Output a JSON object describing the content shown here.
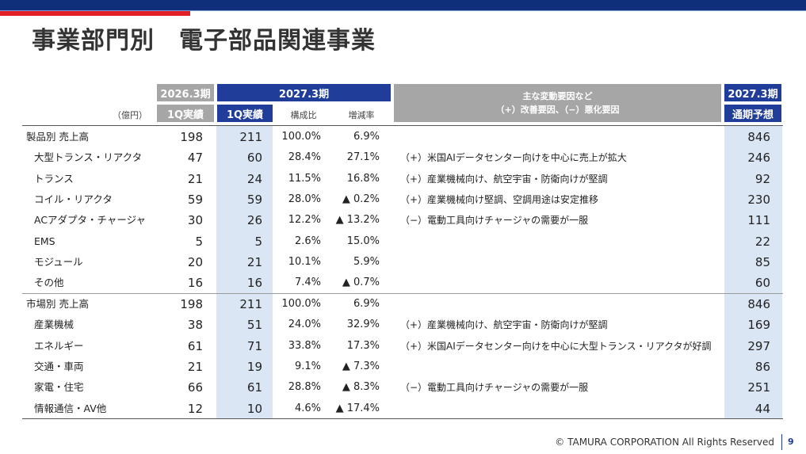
{
  "title": "事業部門別　電子部品関連事業",
  "headers": {
    "prev_period": "2026.3期",
    "prev_result": "1Q実績",
    "cur_period": "2027.3期",
    "cur_result": "1Q実績",
    "composition": "構成比",
    "change": "増減率",
    "factors_line1": "主な変動要因など",
    "factors_line2": "（+）改善要因、（−）悪化要因",
    "forecast_period": "2027.3期",
    "forecast": "通期予想",
    "unit": "（億円）"
  },
  "product_rows": [
    {
      "label": "製品別 売上高",
      "prev": "198",
      "cur": "211",
      "ratio": "100.0%",
      "change": "6.9%",
      "note": "",
      "forecast": "846"
    },
    {
      "label": "大型トランス・リアクタ",
      "prev": "47",
      "cur": "60",
      "ratio": "28.4%",
      "change": "27.1%",
      "note": "（+）米国AIデータセンター向けを中心に売上が拡大",
      "forecast": "246"
    },
    {
      "label": "トランス",
      "prev": "21",
      "cur": "24",
      "ratio": "11.5%",
      "change": "16.8%",
      "note": "（+）産業機械向け、航空宇宙・防衛向けが堅調",
      "forecast": "92"
    },
    {
      "label": "コイル・リアクタ",
      "prev": "59",
      "cur": "59",
      "ratio": "28.0%",
      "change": "▲ 0.2%",
      "note": "（+）産業機械向け堅調、空調用途は安定推移",
      "forecast": "230"
    },
    {
      "label": "ACアダプタ・チャージャ",
      "prev": "30",
      "cur": "26",
      "ratio": "12.2%",
      "change": "▲ 13.2%",
      "note": "（−）電動工具向けチャージャの需要が一服",
      "forecast": "111"
    },
    {
      "label": "EMS",
      "prev": "5",
      "cur": "5",
      "ratio": "2.6%",
      "change": "15.0%",
      "note": "",
      "forecast": "22"
    },
    {
      "label": "モジュール",
      "prev": "20",
      "cur": "21",
      "ratio": "10.1%",
      "change": "5.9%",
      "note": "",
      "forecast": "85"
    },
    {
      "label": "その他",
      "prev": "16",
      "cur": "16",
      "ratio": "7.4%",
      "change": "▲ 0.7%",
      "note": "",
      "forecast": "60"
    }
  ],
  "market_rows": [
    {
      "label": "市場別 売上高",
      "prev": "198",
      "cur": "211",
      "ratio": "100.0%",
      "change": "6.9%",
      "note": "",
      "forecast": "846"
    },
    {
      "label": "産業機械",
      "prev": "38",
      "cur": "51",
      "ratio": "24.0%",
      "change": "32.9%",
      "note": "（+）産業機械向け、航空宇宙・防衛向けが堅調",
      "forecast": "169"
    },
    {
      "label": "エネルギー",
      "prev": "61",
      "cur": "71",
      "ratio": "33.8%",
      "change": "17.3%",
      "note": "（+）米国AIデータセンター向けを中心に大型トランス・リアクタが好調",
      "forecast": "297"
    },
    {
      "label": "交通・車両",
      "prev": "21",
      "cur": "19",
      "ratio": "9.1%",
      "change": "▲ 7.3%",
      "note": "",
      "forecast": "86"
    },
    {
      "label": "家電・住宅",
      "prev": "66",
      "cur": "61",
      "ratio": "28.8%",
      "change": "▲ 8.3%",
      "note": "（−）電動工具向けチャージャの需要が一服",
      "forecast": "251"
    },
    {
      "label": "情報通信・AV他",
      "prev": "12",
      "cur": "10",
      "ratio": "4.6%",
      "change": "▲ 17.4%",
      "note": "",
      "forecast": "44"
    }
  ],
  "footer": {
    "copyright": "© TAMURA CORPORATION All Rights Reserved",
    "page": "9"
  }
}
